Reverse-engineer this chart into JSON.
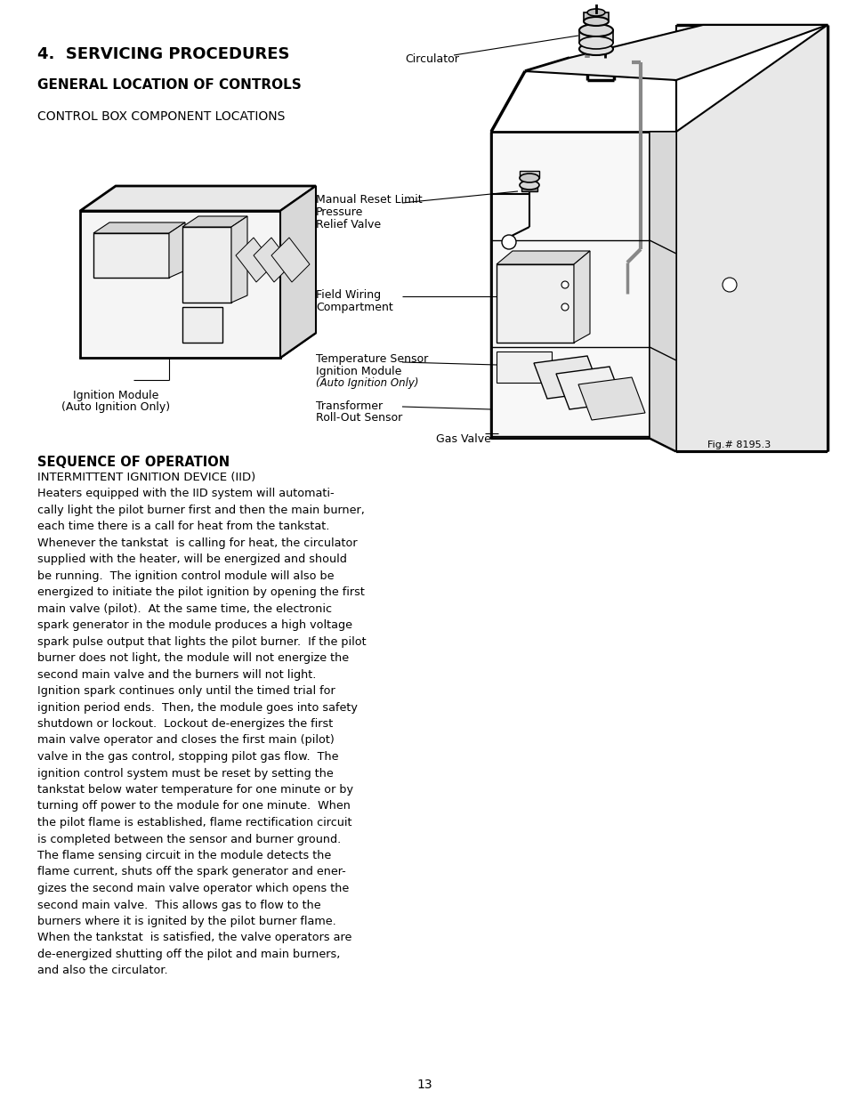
{
  "page_number": "13",
  "background_color": "#ffffff",
  "heading1": "4.  SERVICING PROCEDURES",
  "heading2": "GENERAL LOCATION OF CONTROLS",
  "heading3": "CONTROL BOX COMPONENT LOCATIONS",
  "section_title": "SEQUENCE OF OPERATION",
  "subsection_title": "INTERMITTENT IGNITION DEVICE (IID)",
  "body_lines": [
    "Heaters equipped with the IID system will automati-",
    "cally light the pilot burner first and then the main burner,",
    "each time there is a call for heat from the tankstat.",
    "Whenever the tankstat  is calling for heat, the circulator",
    "supplied with the heater, will be energized and should",
    "be running.  The ignition control module will also be",
    "energized to initiate the pilot ignition by opening the first",
    "main valve (pilot).  At the same time, the electronic",
    "spark generator in the module produces a high voltage",
    "spark pulse output that lights the pilot burner.  If the pilot",
    "burner does not light, the module will not energize the",
    "second main valve and the burners will not light.",
    "Ignition spark continues only until the timed trial for",
    "ignition period ends.  Then, the module goes into safety",
    "shutdown or lockout.  Lockout de-energizes the first",
    "main valve operator and closes the first main (pilot)",
    "valve in the gas control, stopping pilot gas flow.  The",
    "ignition control system must be reset by setting the",
    "tankstat below water temperature for one minute or by",
    "turning off power to the module for one minute.  When",
    "the pilot flame is established, flame rectification circuit",
    "is completed between the sensor and burner ground.",
    "The flame sensing circuit in the module detects the",
    "flame current, shuts off the spark generator and ener-",
    "gizes the second main valve operator which opens the",
    "second main valve.  This allows gas to flow to the",
    "burners where it is ignited by the pilot burner flame.",
    "When the tankstat  is satisfied, the valve operators are",
    "de-energized shutting off the pilot and main burners,",
    "and also the circulator."
  ],
  "label_circulator": "Circulator",
  "label_manual_reset_line1": "Manual Reset Limit",
  "label_manual_reset_line2": "Pressure",
  "label_manual_reset_line3": "Relief Valve",
  "label_field_wiring_line1": "Field Wiring",
  "label_field_wiring_line2": "Compartment",
  "label_temp_sensor_line1": "Temperature Sensor",
  "label_temp_sensor_line2": "Ignition Module",
  "label_temp_sensor_line3": "(Auto Ignition Only)",
  "label_transformer_line1": "Transformer",
  "label_transformer_line2": "Roll-Out Sensor",
  "label_gas_valve": "Gas Valve",
  "label_ignition_module_line1": "Ignition Module",
  "label_ignition_module_line2": "(Auto Ignition Only)",
  "fig_label": "Fig.# 8195.3"
}
